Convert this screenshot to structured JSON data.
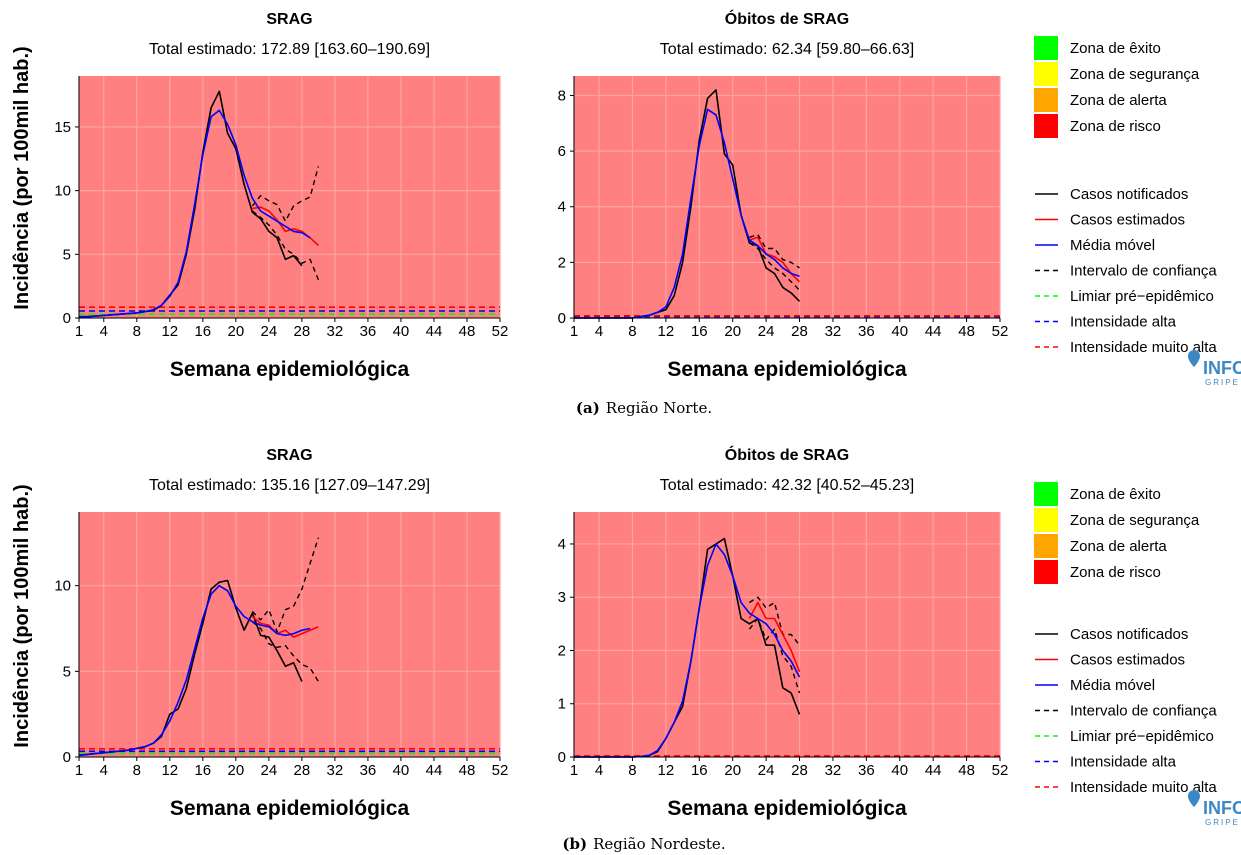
{
  "figure": {
    "ylabel": "Incidência (por 100mil hab.)",
    "captions": [
      {
        "label": "(a)",
        "text": "Região Norte."
      },
      {
        "label": "(b)",
        "text": "Região Nordeste."
      }
    ],
    "logo": {
      "text": "INFO",
      "sub": "GRIPE"
    },
    "colors": {
      "background": "#ff8080",
      "grid": "#ffa3a3",
      "notified": "#000000",
      "estimated": "#ff0000",
      "moving_avg": "#0000ff",
      "ci": "#000000",
      "pre": "#00ff00",
      "high": "#0000ff",
      "very_high": "#ff0000"
    }
  },
  "legend": {
    "zones": [
      {
        "label": "Zona de êxito",
        "color": "#00ff00"
      },
      {
        "label": "Zona de segurança",
        "color": "#ffff00"
      },
      {
        "label": "Zona de alerta",
        "color": "#ffa500"
      },
      {
        "label": "Zona de risco",
        "color": "#ff0000"
      }
    ],
    "lines": [
      {
        "label": "Casos notificados",
        "color": "#000000",
        "dash": false
      },
      {
        "label": "Casos estimados",
        "color": "#ff0000",
        "dash": false
      },
      {
        "label": "Média móvel",
        "color": "#0000ff",
        "dash": false
      },
      {
        "label": "Intervalo de confiança",
        "color": "#000000",
        "dash": true
      },
      {
        "label": "Limiar pré−epidêmico",
        "color": "#00ff00",
        "dash": true
      },
      {
        "label": "Intensidade alta",
        "color": "#0000ff",
        "dash": true
      },
      {
        "label": "Intensidade muito alta",
        "color": "#ff0000",
        "dash": true
      }
    ]
  },
  "chart_data": [
    {
      "type": "line",
      "title": "SRAG",
      "subtitle": "Total estimado: 172.89 [163.60–190.69]",
      "xlabel": "Semana epidemiológica",
      "xlim": [
        1,
        52
      ],
      "ylim": [
        0,
        19
      ],
      "xticks": [
        1,
        4,
        8,
        12,
        16,
        20,
        24,
        28,
        32,
        36,
        40,
        44,
        48,
        52
      ],
      "yticks": [
        0,
        5,
        10,
        15
      ],
      "thresholds": {
        "pre_epidemic": 0.3,
        "high": 0.55,
        "very_high": 0.85
      },
      "series": [
        {
          "name": "Casos notificados",
          "x": [
            1,
            2,
            3,
            4,
            5,
            6,
            7,
            8,
            9,
            10,
            11,
            12,
            13,
            14,
            15,
            16,
            17,
            18,
            19,
            20,
            21,
            22,
            23,
            24,
            25,
            26,
            27,
            28
          ],
          "values": [
            0.1,
            0.1,
            0.15,
            0.2,
            0.25,
            0.3,
            0.35,
            0.4,
            0.5,
            0.6,
            1.0,
            1.8,
            2.6,
            5.0,
            8.5,
            13.0,
            16.5,
            17.8,
            14.5,
            13.3,
            10.5,
            8.3,
            7.8,
            6.8,
            6.3,
            4.6,
            4.9,
            4.1
          ]
        },
        {
          "name": "Casos estimados",
          "x": [
            22,
            23,
            24,
            25,
            26,
            27,
            28,
            29,
            30
          ],
          "values": [
            8.6,
            8.7,
            8.4,
            7.7,
            6.8,
            7.0,
            6.8,
            6.3,
            5.7
          ]
        },
        {
          "name": "Média móvel",
          "x": [
            1,
            2,
            3,
            4,
            5,
            6,
            7,
            8,
            9,
            10,
            11,
            12,
            13,
            14,
            15,
            16,
            17,
            18,
            19,
            20,
            21,
            22,
            23,
            24,
            25,
            26,
            27,
            28,
            29
          ],
          "values": [
            0.1,
            0.1,
            0.15,
            0.2,
            0.25,
            0.3,
            0.35,
            0.4,
            0.5,
            0.65,
            1.0,
            1.7,
            2.8,
            5.2,
            8.9,
            12.8,
            15.8,
            16.3,
            15.2,
            13.6,
            11.2,
            9.4,
            8.4,
            8.0,
            7.6,
            7.2,
            6.8,
            6.7,
            6.3
          ]
        },
        {
          "name": "IC superior",
          "x": [
            22,
            23,
            24,
            25,
            26,
            27,
            28,
            29,
            30
          ],
          "values": [
            8.8,
            9.6,
            9.2,
            8.9,
            7.6,
            8.8,
            9.2,
            9.5,
            11.9
          ]
        },
        {
          "name": "IC inferior",
          "x": [
            22,
            23,
            24,
            25,
            26,
            27,
            28,
            29,
            30
          ],
          "values": [
            8.4,
            7.9,
            7.3,
            6.5,
            5.4,
            5.0,
            4.3,
            4.6,
            3.0
          ]
        }
      ]
    },
    {
      "type": "line",
      "title": "Óbitos de SRAG",
      "subtitle": "Total estimado: 62.34 [59.80–66.63]",
      "xlabel": "Semana epidemiológica",
      "xlim": [
        1,
        52
      ],
      "ylim": [
        0,
        8.7
      ],
      "xticks": [
        1,
        4,
        8,
        12,
        16,
        20,
        24,
        28,
        32,
        36,
        40,
        44,
        48,
        52
      ],
      "yticks": [
        0,
        2,
        4,
        6,
        8
      ],
      "thresholds": {
        "pre_epidemic": 0.03,
        "high": 0.05,
        "very_high": 0.08
      },
      "series": [
        {
          "name": "Casos notificados",
          "x": [
            1,
            2,
            3,
            4,
            5,
            6,
            7,
            8,
            9,
            10,
            11,
            12,
            13,
            14,
            15,
            16,
            17,
            18,
            19,
            20,
            21,
            22,
            23,
            24,
            25,
            26,
            27,
            28
          ],
          "values": [
            0,
            0,
            0,
            0,
            0,
            0,
            0,
            0,
            0.05,
            0.1,
            0.2,
            0.3,
            0.8,
            2.0,
            4.0,
            6.4,
            7.9,
            8.2,
            5.9,
            5.5,
            3.7,
            2.7,
            2.6,
            1.8,
            1.6,
            1.1,
            0.9,
            0.6
          ]
        },
        {
          "name": "Casos estimados",
          "x": [
            22,
            23,
            24,
            25,
            26,
            27,
            28
          ],
          "values": [
            2.8,
            2.9,
            2.3,
            2.2,
            2.0,
            1.6,
            1.3
          ]
        },
        {
          "name": "Média móvel",
          "x": [
            1,
            2,
            3,
            4,
            5,
            6,
            7,
            8,
            9,
            10,
            11,
            12,
            13,
            14,
            15,
            16,
            17,
            18,
            19,
            20,
            21,
            22,
            23,
            24,
            25,
            26,
            27,
            28
          ],
          "values": [
            0,
            0,
            0,
            0,
            0,
            0,
            0,
            0,
            0.05,
            0.1,
            0.2,
            0.4,
            1.1,
            2.3,
            4.3,
            6.2,
            7.5,
            7.3,
            6.3,
            5.0,
            3.7,
            2.8,
            2.6,
            2.3,
            2.1,
            1.8,
            1.6,
            1.5
          ]
        },
        {
          "name": "IC superior",
          "x": [
            22,
            23,
            24,
            25,
            26,
            27,
            28
          ],
          "values": [
            2.9,
            3.0,
            2.5,
            2.5,
            2.1,
            2.0,
            1.8
          ]
        },
        {
          "name": "IC inferior",
          "x": [
            22,
            23,
            24,
            25,
            26,
            27,
            28
          ],
          "values": [
            2.7,
            2.5,
            2.1,
            1.8,
            1.6,
            1.3,
            1.0
          ]
        }
      ]
    },
    {
      "type": "line",
      "title": "SRAG",
      "subtitle": "Total estimado: 135.16 [127.09–147.29]",
      "xlabel": "Semana epidemiológica",
      "xlim": [
        1,
        52
      ],
      "ylim": [
        0,
        14.3
      ],
      "xticks": [
        1,
        4,
        8,
        12,
        16,
        20,
        24,
        28,
        32,
        36,
        40,
        44,
        48,
        52
      ],
      "yticks": [
        0,
        5,
        10
      ],
      "thresholds": {
        "pre_epidemic": 0.2,
        "high": 0.33,
        "very_high": 0.48
      },
      "series": [
        {
          "name": "Casos notificados",
          "x": [
            1,
            2,
            3,
            4,
            5,
            6,
            7,
            8,
            9,
            10,
            11,
            12,
            13,
            14,
            15,
            16,
            17,
            18,
            19,
            20,
            21,
            22,
            23,
            24,
            25,
            26,
            27,
            28
          ],
          "values": [
            0.1,
            0.15,
            0.2,
            0.25,
            0.3,
            0.35,
            0.4,
            0.5,
            0.6,
            0.8,
            1.2,
            2.5,
            2.8,
            4.0,
            6.0,
            7.8,
            9.8,
            10.2,
            10.3,
            8.7,
            7.4,
            8.4,
            7.1,
            7.0,
            6.2,
            5.3,
            5.5,
            4.4
          ]
        },
        {
          "name": "Casos estimados",
          "x": [
            22,
            23,
            24,
            25,
            26,
            27,
            28,
            29,
            30
          ],
          "values": [
            8.2,
            7.8,
            7.7,
            7.2,
            7.4,
            7.0,
            7.2,
            7.4,
            7.6
          ]
        },
        {
          "name": "Média móvel",
          "x": [
            1,
            2,
            3,
            4,
            5,
            6,
            7,
            8,
            9,
            10,
            11,
            12,
            13,
            14,
            15,
            16,
            17,
            18,
            19,
            20,
            21,
            22,
            23,
            24,
            25,
            26,
            27,
            28,
            29
          ],
          "values": [
            0.1,
            0.15,
            0.2,
            0.25,
            0.3,
            0.35,
            0.4,
            0.5,
            0.6,
            0.8,
            1.3,
            2.1,
            3.2,
            4.5,
            6.3,
            8.1,
            9.5,
            10.0,
            9.7,
            8.8,
            8.2,
            7.9,
            7.7,
            7.6,
            7.2,
            7.1,
            7.2,
            7.4,
            7.5
          ]
        },
        {
          "name": "IC superior",
          "x": [
            22,
            23,
            24,
            25,
            26,
            27,
            28,
            29,
            30
          ],
          "values": [
            8.5,
            8.0,
            8.6,
            7.3,
            8.6,
            8.8,
            9.8,
            11.3,
            12.8
          ]
        },
        {
          "name": "IC inferior",
          "x": [
            22,
            23,
            24,
            25,
            26,
            27,
            28,
            29,
            30
          ],
          "values": [
            7.9,
            7.5,
            6.6,
            6.4,
            6.5,
            5.9,
            5.4,
            5.2,
            4.4
          ]
        }
      ]
    },
    {
      "type": "line",
      "title": "Óbitos de SRAG",
      "subtitle": "Total estimado: 42.32 [40.52–45.23]",
      "xlabel": "Semana epidemiológica",
      "xlim": [
        1,
        52
      ],
      "ylim": [
        0,
        4.6
      ],
      "xticks": [
        1,
        4,
        8,
        12,
        16,
        20,
        24,
        28,
        32,
        36,
        40,
        44,
        48,
        52
      ],
      "yticks": [
        0,
        1,
        2,
        3,
        4
      ],
      "thresholds": {
        "pre_epidemic": 0.01,
        "high": 0.015,
        "very_high": 0.02
      },
      "series": [
        {
          "name": "Casos notificados",
          "x": [
            1,
            2,
            3,
            4,
            5,
            6,
            7,
            8,
            9,
            10,
            11,
            12,
            13,
            14,
            15,
            16,
            17,
            18,
            19,
            20,
            21,
            22,
            23,
            24,
            25,
            26,
            27,
            28
          ],
          "values": [
            0,
            0,
            0,
            0,
            0,
            0,
            0,
            0,
            0.01,
            0.03,
            0.1,
            0.35,
            0.65,
            0.95,
            1.8,
            2.8,
            3.9,
            4.0,
            4.1,
            3.4,
            2.6,
            2.5,
            2.6,
            2.1,
            2.1,
            1.3,
            1.2,
            0.8
          ]
        },
        {
          "name": "Casos estimados",
          "x": [
            22,
            23,
            24,
            25,
            26,
            27,
            28
          ],
          "values": [
            2.6,
            2.9,
            2.6,
            2.6,
            2.3,
            2.0,
            1.6
          ]
        },
        {
          "name": "Média móvel",
          "x": [
            1,
            2,
            3,
            4,
            5,
            6,
            7,
            8,
            9,
            10,
            11,
            12,
            13,
            14,
            15,
            16,
            17,
            18,
            19,
            20,
            21,
            22,
            23,
            24,
            25,
            26,
            27,
            28
          ],
          "values": [
            0,
            0,
            0,
            0,
            0,
            0,
            0,
            0,
            0.01,
            0.03,
            0.12,
            0.35,
            0.65,
            1.05,
            1.8,
            2.8,
            3.6,
            4.0,
            3.8,
            3.4,
            2.9,
            2.7,
            2.6,
            2.5,
            2.3,
            2.0,
            1.8,
            1.5
          ]
        },
        {
          "name": "IC superior",
          "x": [
            22,
            23,
            24,
            25,
            26,
            27,
            28
          ],
          "values": [
            2.9,
            3.0,
            2.8,
            2.9,
            2.3,
            2.3,
            2.1
          ]
        },
        {
          "name": "IC inferior",
          "x": [
            22,
            23,
            24,
            25,
            26,
            27,
            28
          ],
          "values": [
            2.4,
            2.6,
            2.2,
            2.4,
            1.9,
            1.7,
            1.2
          ]
        }
      ]
    }
  ]
}
